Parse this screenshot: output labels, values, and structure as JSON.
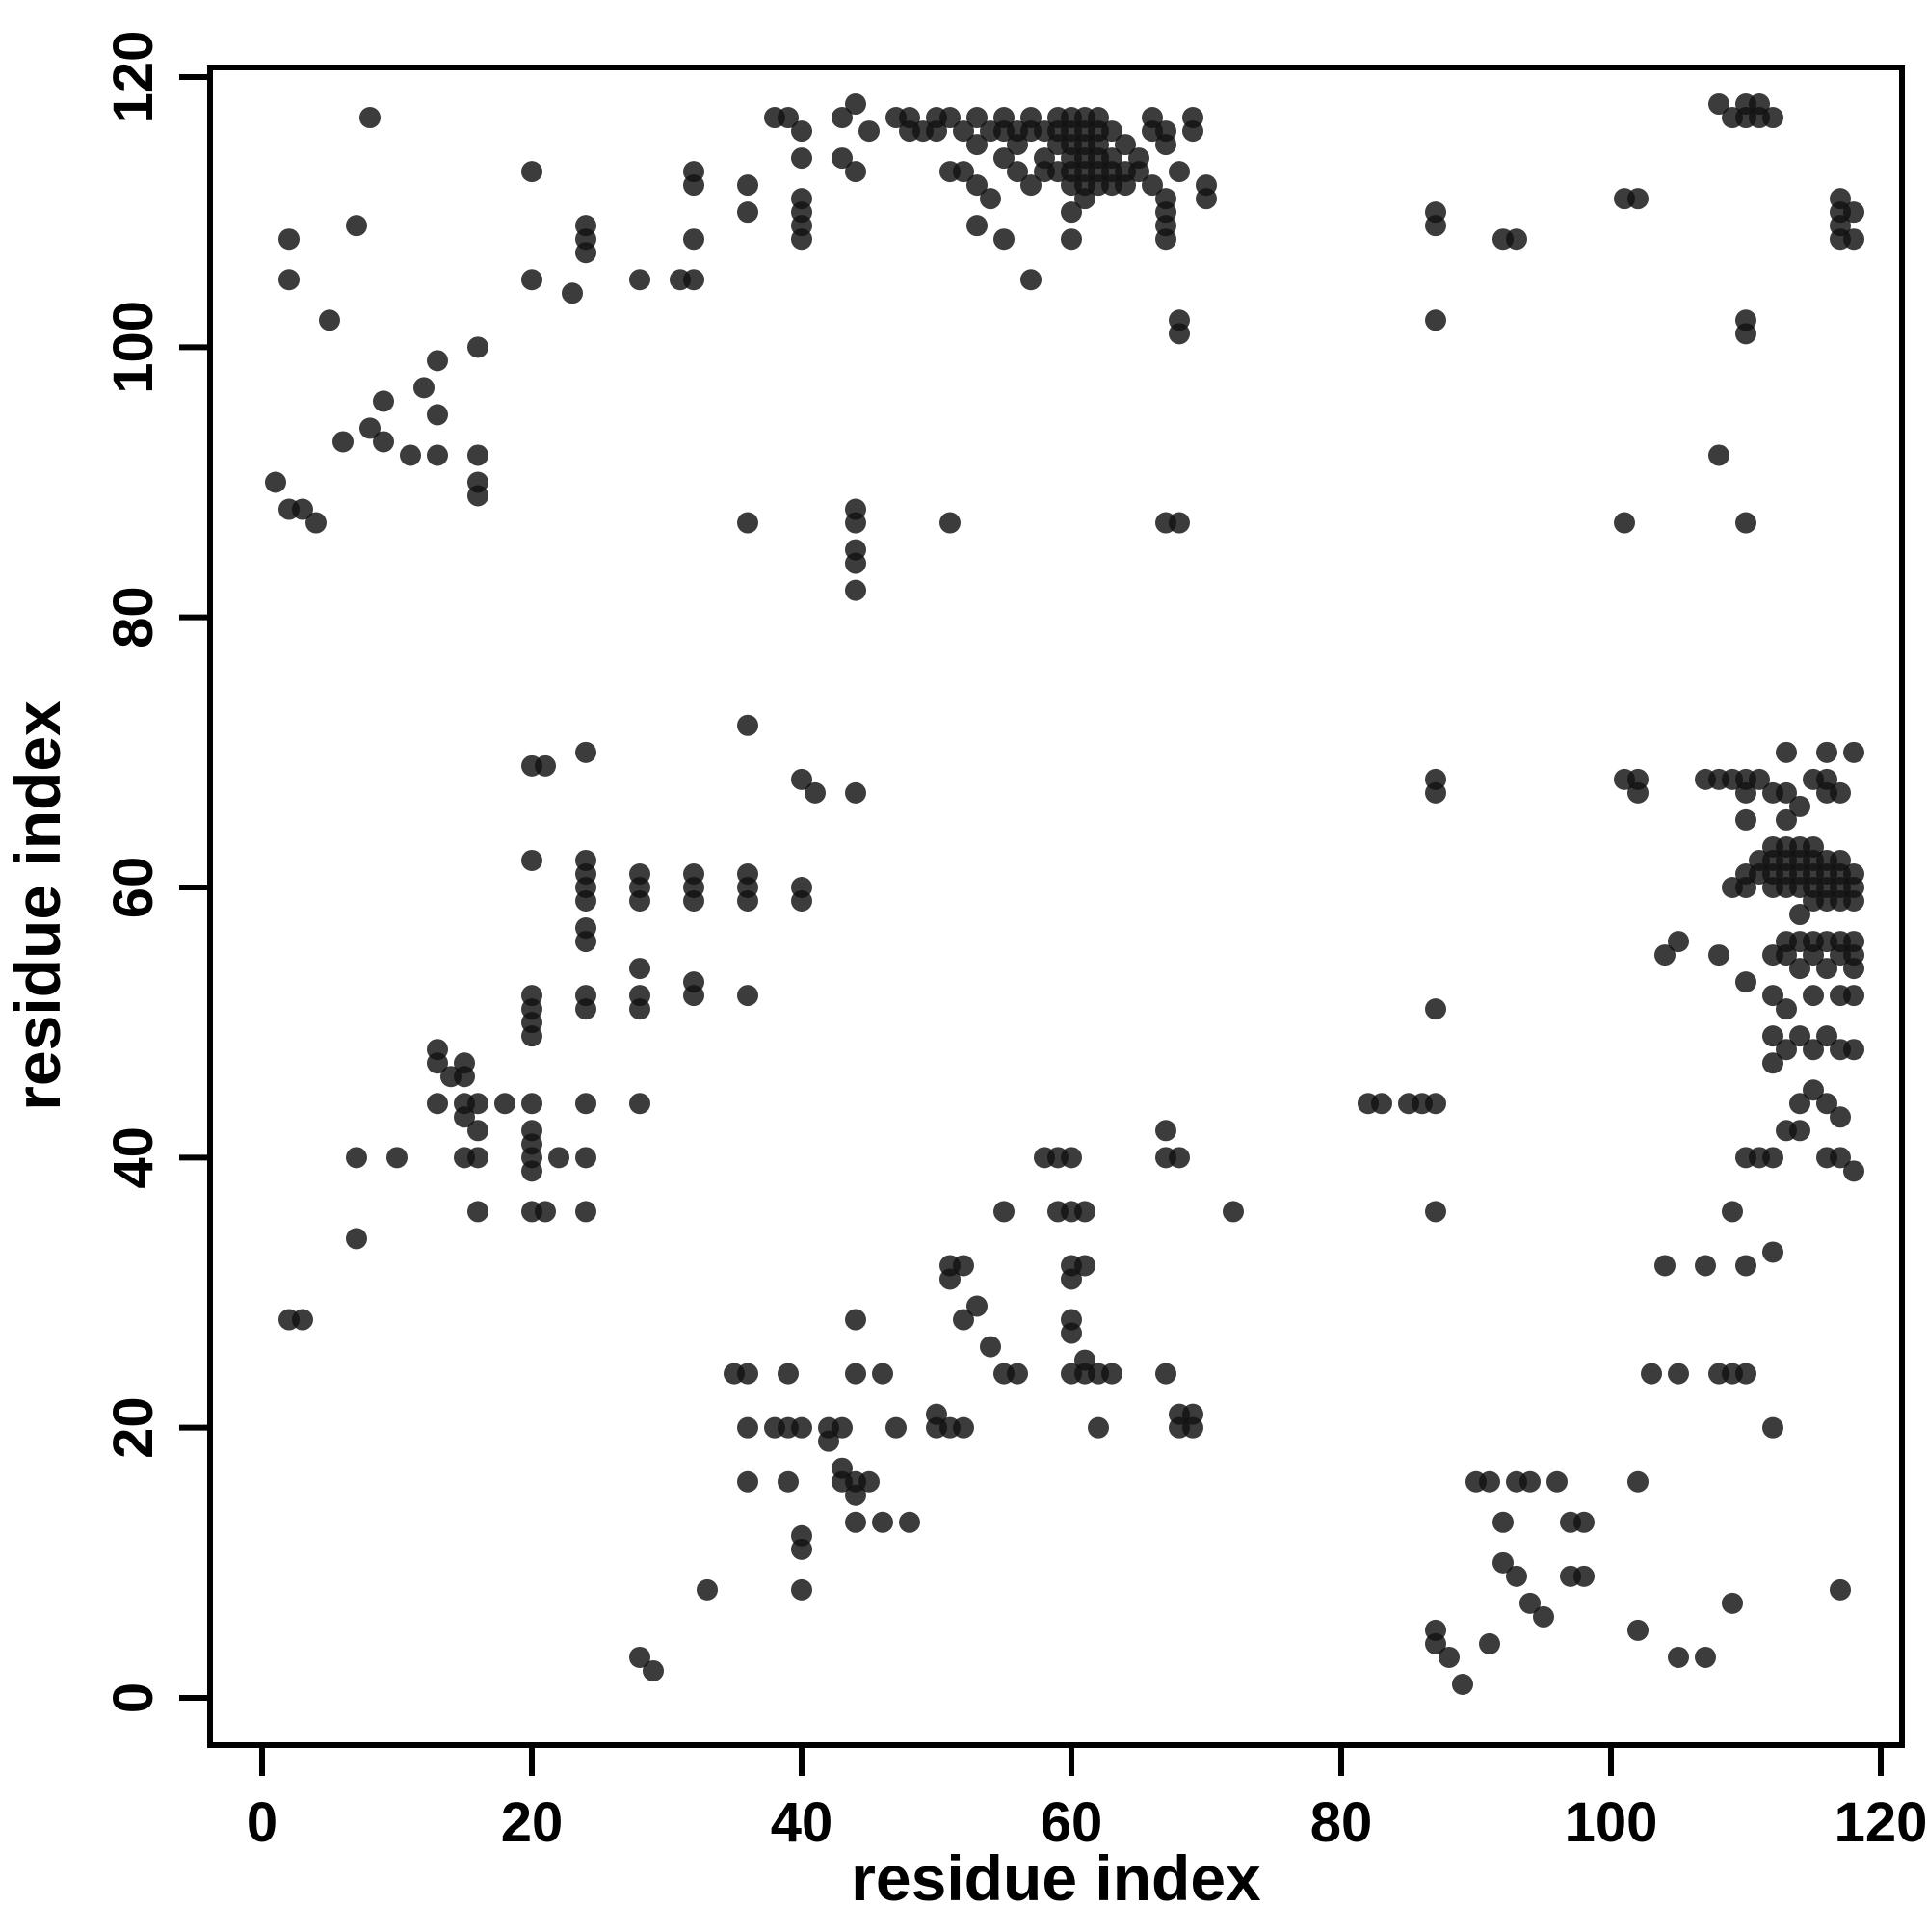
{
  "figure": {
    "background_color": "#ffffff",
    "foreground_color": "#000000"
  },
  "chart_data": {
    "type": "scatter",
    "title": "",
    "xlabel": "residue index",
    "ylabel": "residue index",
    "xlim": [
      0,
      120
    ],
    "ylim": [
      0,
      120
    ],
    "xticks": [
      0,
      20,
      40,
      60,
      80,
      100,
      120
    ],
    "yticks": [
      0,
      20,
      40,
      60,
      80,
      100,
      120
    ],
    "grid": false,
    "legend": "none",
    "marker": {
      "shape": "circle",
      "color": "#111111",
      "opacity": 0.82,
      "radius_px": 11
    },
    "points": [
      [
        8,
        117
      ],
      [
        2,
        108
      ],
      [
        7,
        109
      ],
      [
        2,
        105
      ],
      [
        5,
        102
      ],
      [
        13,
        99
      ],
      [
        16,
        100
      ],
      [
        12,
        97
      ],
      [
        13,
        95
      ],
      [
        9,
        96
      ],
      [
        6,
        93
      ],
      [
        8,
        94
      ],
      [
        9,
        93
      ],
      [
        11,
        92
      ],
      [
        13,
        92
      ],
      [
        16,
        92
      ],
      [
        16,
        90
      ],
      [
        16,
        89
      ],
      [
        1,
        90
      ],
      [
        2,
        88
      ],
      [
        3,
        88
      ],
      [
        4,
        87
      ],
      [
        20,
        113
      ],
      [
        20,
        105
      ],
      [
        23,
        104
      ],
      [
        24,
        109
      ],
      [
        24,
        108
      ],
      [
        24,
        107
      ],
      [
        28,
        105
      ],
      [
        31,
        105
      ],
      [
        32,
        113
      ],
      [
        32,
        112
      ],
      [
        32,
        108
      ],
      [
        32,
        105
      ],
      [
        36,
        112
      ],
      [
        36,
        110
      ],
      [
        38,
        117
      ],
      [
        39,
        117
      ],
      [
        40,
        116
      ],
      [
        40,
        114
      ],
      [
        40,
        111
      ],
      [
        40,
        110
      ],
      [
        40,
        109
      ],
      [
        40,
        108
      ],
      [
        43,
        117
      ],
      [
        43,
        114
      ],
      [
        44,
        118
      ],
      [
        44,
        113
      ],
      [
        45,
        116
      ],
      [
        47,
        117
      ],
      [
        48,
        117
      ],
      [
        48,
        116
      ],
      [
        49,
        116
      ],
      [
        50,
        117
      ],
      [
        50,
        116
      ],
      [
        51,
        117
      ],
      [
        51,
        113
      ],
      [
        52,
        116
      ],
      [
        52,
        113
      ],
      [
        53,
        117
      ],
      [
        53,
        115
      ],
      [
        53,
        112
      ],
      [
        54,
        116
      ],
      [
        54,
        111
      ],
      [
        55,
        117
      ],
      [
        55,
        116
      ],
      [
        55,
        114
      ],
      [
        55,
        108
      ],
      [
        56,
        116
      ],
      [
        56,
        115
      ],
      [
        56,
        113
      ],
      [
        57,
        117
      ],
      [
        57,
        116
      ],
      [
        57,
        112
      ],
      [
        58,
        116
      ],
      [
        58,
        114
      ],
      [
        58,
        113
      ],
      [
        59,
        117
      ],
      [
        59,
        116
      ],
      [
        59,
        115
      ],
      [
        59,
        113
      ],
      [
        60,
        117
      ],
      [
        60,
        116
      ],
      [
        60,
        115
      ],
      [
        60,
        114
      ],
      [
        60,
        113
      ],
      [
        60,
        112
      ],
      [
        60,
        110
      ],
      [
        60,
        108
      ],
      [
        61,
        117
      ],
      [
        61,
        116
      ],
      [
        61,
        115
      ],
      [
        61,
        114
      ],
      [
        61,
        113
      ],
      [
        61,
        112
      ],
      [
        61,
        111
      ],
      [
        62,
        117
      ],
      [
        62,
        116
      ],
      [
        62,
        115
      ],
      [
        62,
        114
      ],
      [
        62,
        113
      ],
      [
        62,
        112
      ],
      [
        63,
        116
      ],
      [
        63,
        114
      ],
      [
        63,
        113
      ],
      [
        63,
        112
      ],
      [
        64,
        115
      ],
      [
        64,
        113
      ],
      [
        64,
        112
      ],
      [
        65,
        114
      ],
      [
        65,
        113
      ],
      [
        53,
        109
      ],
      [
        57,
        105
      ],
      [
        66,
        117
      ],
      [
        66,
        116
      ],
      [
        67,
        116
      ],
      [
        67,
        115
      ],
      [
        66,
        112
      ],
      [
        67,
        111
      ],
      [
        67,
        110
      ],
      [
        67,
        109
      ],
      [
        67,
        108
      ],
      [
        68,
        113
      ],
      [
        69,
        117
      ],
      [
        69,
        116
      ],
      [
        70,
        112
      ],
      [
        70,
        111
      ],
      [
        68,
        102
      ],
      [
        68,
        101
      ],
      [
        36,
        87
      ],
      [
        44,
        88
      ],
      [
        44,
        87
      ],
      [
        44,
        85
      ],
      [
        44,
        84
      ],
      [
        44,
        82
      ],
      [
        51,
        87
      ],
      [
        67,
        87
      ],
      [
        68,
        87
      ],
      [
        101,
        87
      ],
      [
        110,
        87
      ],
      [
        36,
        72
      ],
      [
        87,
        110
      ],
      [
        87,
        109
      ],
      [
        87,
        102
      ],
      [
        92,
        108
      ],
      [
        93,
        108
      ],
      [
        101,
        111
      ],
      [
        102,
        111
      ],
      [
        108,
        118
      ],
      [
        109,
        117
      ],
      [
        110,
        118
      ],
      [
        110,
        117
      ],
      [
        111,
        118
      ],
      [
        111,
        117
      ],
      [
        112,
        117
      ],
      [
        108,
        92
      ],
      [
        110,
        102
      ],
      [
        110,
        101
      ],
      [
        117,
        111
      ],
      [
        117,
        110
      ],
      [
        117,
        109
      ],
      [
        117,
        108
      ],
      [
        118,
        110
      ],
      [
        118,
        108
      ],
      [
        24,
        70
      ],
      [
        20,
        69
      ],
      [
        21,
        69
      ],
      [
        20,
        62
      ],
      [
        24,
        62
      ],
      [
        24,
        61
      ],
      [
        24,
        60
      ],
      [
        24,
        59
      ],
      [
        24,
        57
      ],
      [
        24,
        56
      ],
      [
        28,
        61
      ],
      [
        28,
        60
      ],
      [
        28,
        59
      ],
      [
        32,
        61
      ],
      [
        32,
        60
      ],
      [
        32,
        59
      ],
      [
        36,
        61
      ],
      [
        36,
        60
      ],
      [
        36,
        59
      ],
      [
        40,
        60
      ],
      [
        40,
        59
      ],
      [
        40,
        68
      ],
      [
        41,
        67
      ],
      [
        44,
        67
      ],
      [
        28,
        54
      ],
      [
        28,
        52
      ],
      [
        28,
        51
      ],
      [
        32,
        53
      ],
      [
        32,
        52
      ],
      [
        36,
        52
      ],
      [
        20,
        52
      ],
      [
        20,
        51
      ],
      [
        20,
        50
      ],
      [
        20,
        49
      ],
      [
        24,
        52
      ],
      [
        24,
        51
      ],
      [
        13,
        48
      ],
      [
        13,
        47
      ],
      [
        14,
        46
      ],
      [
        15,
        47
      ],
      [
        15,
        46
      ],
      [
        13,
        44
      ],
      [
        15,
        44
      ],
      [
        16,
        44
      ],
      [
        18,
        44
      ],
      [
        20,
        44
      ],
      [
        24,
        44
      ],
      [
        28,
        44
      ],
      [
        15,
        43
      ],
      [
        16,
        42
      ],
      [
        20,
        42
      ],
      [
        20,
        41
      ],
      [
        20,
        40
      ],
      [
        20,
        39
      ],
      [
        7,
        40
      ],
      [
        10,
        40
      ],
      [
        15,
        40
      ],
      [
        16,
        40
      ],
      [
        22,
        40
      ],
      [
        24,
        40
      ],
      [
        16,
        36
      ],
      [
        20,
        36
      ],
      [
        21,
        36
      ],
      [
        24,
        36
      ],
      [
        7,
        34
      ],
      [
        2,
        28
      ],
      [
        3,
        28
      ],
      [
        28,
        3
      ],
      [
        29,
        2
      ],
      [
        33,
        8
      ],
      [
        35,
        24
      ],
      [
        36,
        24
      ],
      [
        39,
        24
      ],
      [
        36,
        20
      ],
      [
        38,
        20
      ],
      [
        39,
        20
      ],
      [
        40,
        20
      ],
      [
        36,
        16
      ],
      [
        39,
        16
      ],
      [
        40,
        12
      ],
      [
        40,
        11
      ],
      [
        40,
        8
      ],
      [
        42,
        20
      ],
      [
        42,
        19
      ],
      [
        43,
        20
      ],
      [
        43,
        17
      ],
      [
        43,
        16
      ],
      [
        44,
        28
      ],
      [
        44,
        24
      ],
      [
        44,
        16
      ],
      [
        44,
        15
      ],
      [
        44,
        13
      ],
      [
        45,
        16
      ],
      [
        46,
        24
      ],
      [
        46,
        13
      ],
      [
        47,
        20
      ],
      [
        48,
        13
      ],
      [
        50,
        20
      ],
      [
        50,
        21
      ],
      [
        51,
        20
      ],
      [
        52,
        20
      ],
      [
        51,
        32
      ],
      [
        51,
        31
      ],
      [
        52,
        32
      ],
      [
        52,
        28
      ],
      [
        53,
        29
      ],
      [
        54,
        26
      ],
      [
        55,
        24
      ],
      [
        56,
        24
      ],
      [
        55,
        36
      ],
      [
        58,
        40
      ],
      [
        59,
        40
      ],
      [
        60,
        40
      ],
      [
        59,
        36
      ],
      [
        60,
        36
      ],
      [
        61,
        36
      ],
      [
        60,
        32
      ],
      [
        61,
        32
      ],
      [
        60,
        31
      ],
      [
        60,
        28
      ],
      [
        60,
        27
      ],
      [
        61,
        25
      ],
      [
        60,
        24
      ],
      [
        61,
        24
      ],
      [
        62,
        24
      ],
      [
        63,
        24
      ],
      [
        62,
        20
      ],
      [
        67,
        42
      ],
      [
        67,
        40
      ],
      [
        68,
        40
      ],
      [
        67,
        24
      ],
      [
        68,
        21
      ],
      [
        68,
        20
      ],
      [
        69,
        21
      ],
      [
        69,
        20
      ],
      [
        72,
        36
      ],
      [
        87,
        5
      ],
      [
        87,
        4
      ],
      [
        88,
        3
      ],
      [
        89,
        1
      ],
      [
        90,
        16
      ],
      [
        91,
        16
      ],
      [
        93,
        16
      ],
      [
        94,
        16
      ],
      [
        92,
        13
      ],
      [
        92,
        10
      ],
      [
        93,
        9
      ],
      [
        94,
        7
      ],
      [
        95,
        6
      ],
      [
        96,
        16
      ],
      [
        97,
        13
      ],
      [
        98,
        13
      ],
      [
        97,
        9
      ],
      [
        98,
        9
      ],
      [
        91,
        4
      ],
      [
        102,
        16
      ],
      [
        102,
        5
      ],
      [
        105,
        3
      ],
      [
        107,
        3
      ],
      [
        109,
        7
      ],
      [
        112,
        20
      ],
      [
        117,
        8
      ],
      [
        87,
        68
      ],
      [
        87,
        67
      ],
      [
        101,
        68
      ],
      [
        102,
        68
      ],
      [
        102,
        67
      ],
      [
        107,
        68
      ],
      [
        108,
        68
      ],
      [
        109,
        68
      ],
      [
        110,
        68
      ],
      [
        111,
        68
      ],
      [
        110,
        67
      ],
      [
        112,
        67
      ],
      [
        113,
        67
      ],
      [
        115,
        68
      ],
      [
        116,
        68
      ],
      [
        116,
        67
      ],
      [
        117,
        67
      ],
      [
        113,
        70
      ],
      [
        116,
        70
      ],
      [
        118,
        70
      ],
      [
        110,
        65
      ],
      [
        113,
        65
      ],
      [
        114,
        66
      ],
      [
        109,
        60
      ],
      [
        110,
        61
      ],
      [
        110,
        60
      ],
      [
        111,
        62
      ],
      [
        111,
        61
      ],
      [
        112,
        63
      ],
      [
        112,
        62
      ],
      [
        112,
        61
      ],
      [
        112,
        60
      ],
      [
        113,
        63
      ],
      [
        113,
        62
      ],
      [
        113,
        61
      ],
      [
        113,
        60
      ],
      [
        114,
        63
      ],
      [
        114,
        62
      ],
      [
        114,
        61
      ],
      [
        114,
        60
      ],
      [
        115,
        63
      ],
      [
        115,
        62
      ],
      [
        115,
        61
      ],
      [
        115,
        60
      ],
      [
        116,
        62
      ],
      [
        116,
        61
      ],
      [
        116,
        60
      ],
      [
        117,
        62
      ],
      [
        117,
        61
      ],
      [
        117,
        60
      ],
      [
        118,
        61
      ],
      [
        118,
        60
      ],
      [
        118,
        59
      ],
      [
        117,
        59
      ],
      [
        116,
        59
      ],
      [
        115,
        59
      ],
      [
        114,
        58
      ],
      [
        113,
        56
      ],
      [
        114,
        56
      ],
      [
        115,
        56
      ],
      [
        116,
        56
      ],
      [
        117,
        56
      ],
      [
        118,
        56
      ],
      [
        112,
        55
      ],
      [
        113,
        55
      ],
      [
        115,
        55
      ],
      [
        117,
        55
      ],
      [
        118,
        55
      ],
      [
        114,
        54
      ],
      [
        116,
        54
      ],
      [
        118,
        54
      ],
      [
        112,
        52
      ],
      [
        113,
        51
      ],
      [
        115,
        52
      ],
      [
        117,
        52
      ],
      [
        118,
        52
      ],
      [
        110,
        53
      ],
      [
        108,
        55
      ],
      [
        105,
        56
      ],
      [
        104,
        55
      ],
      [
        112,
        49
      ],
      [
        113,
        48
      ],
      [
        114,
        49
      ],
      [
        115,
        48
      ],
      [
        116,
        49
      ],
      [
        117,
        48
      ],
      [
        118,
        48
      ],
      [
        112,
        47
      ],
      [
        114,
        44
      ],
      [
        115,
        45
      ],
      [
        116,
        44
      ],
      [
        117,
        43
      ],
      [
        113,
        42
      ],
      [
        114,
        42
      ],
      [
        116,
        40
      ],
      [
        117,
        40
      ],
      [
        118,
        39
      ],
      [
        110,
        40
      ],
      [
        111,
        40
      ],
      [
        112,
        40
      ],
      [
        87,
        51
      ],
      [
        87,
        44
      ],
      [
        87,
        36
      ],
      [
        82,
        44
      ],
      [
        83,
        44
      ],
      [
        85,
        44
      ],
      [
        86,
        44
      ],
      [
        109,
        36
      ],
      [
        104,
        32
      ],
      [
        107,
        32
      ],
      [
        110,
        32
      ],
      [
        112,
        33
      ],
      [
        105,
        24
      ],
      [
        108,
        24
      ],
      [
        109,
        24
      ],
      [
        110,
        24
      ],
      [
        103,
        24
      ]
    ]
  }
}
